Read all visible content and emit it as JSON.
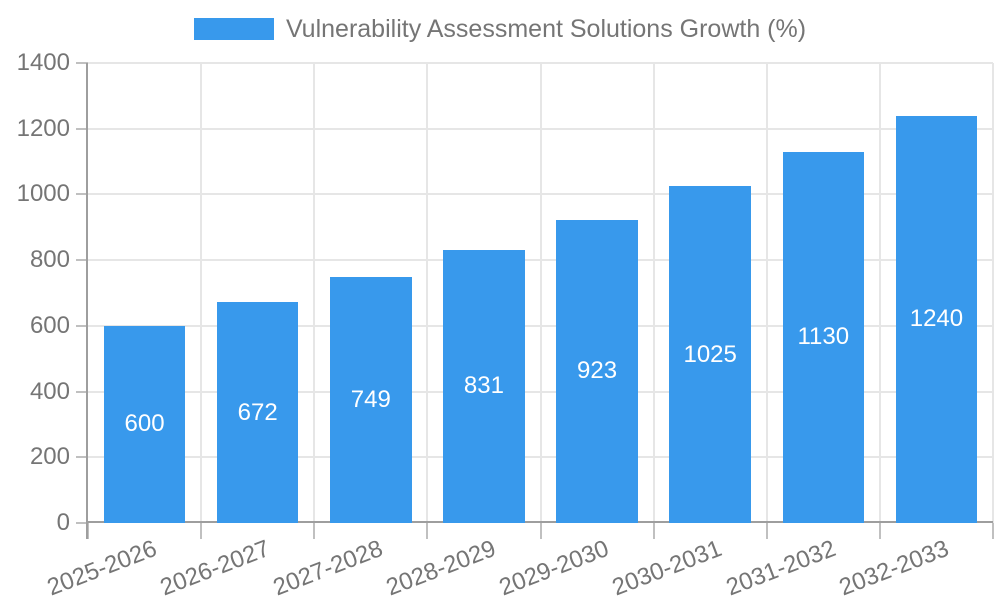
{
  "chart_data": {
    "type": "bar",
    "title": "Vulnerability Assessment Solutions Growth (%)",
    "series_name": "Vulnerability Assessment Solutions Growth (%)",
    "categories": [
      "2025-2026",
      "2026-2027",
      "2027-2028",
      "2028-2029",
      "2029-2030",
      "2030-2031",
      "2031-2032",
      "2032-2033"
    ],
    "values": [
      600,
      672,
      749,
      831,
      923,
      1025,
      1130,
      1240
    ],
    "value_labels": [
      "600",
      "672",
      "749",
      "831",
      "923",
      "1025",
      "1130",
      "1240"
    ],
    "xlabel": "",
    "ylabel": "",
    "ylim": [
      0,
      1400
    ],
    "y_ticks": [
      0,
      200,
      400,
      600,
      800,
      1000,
      1200,
      1400
    ],
    "grid": true,
    "legend_position": "top-center",
    "colors": {
      "bar": "#3899ec",
      "value_label": "#ffffff",
      "grid": "#e6e6e6",
      "axis": "#9e9e9e",
      "tick": "#c0c0c0",
      "text": "#757575"
    }
  }
}
